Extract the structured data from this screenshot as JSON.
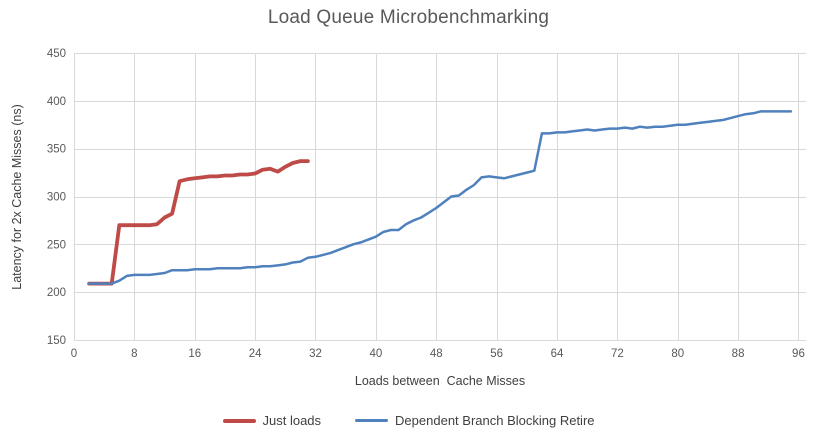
{
  "chart_data": {
    "type": "line",
    "title": "Load Queue Microbenchmarking",
    "xlabel": "Loads between  Cache Misses",
    "ylabel": "Latency for 2x Cache Misses (ns)",
    "xlim": [
      0,
      97
    ],
    "ylim": [
      150,
      450
    ],
    "x_ticks": [
      0,
      8,
      16,
      24,
      32,
      40,
      48,
      56,
      64,
      72,
      80,
      88,
      96
    ],
    "y_ticks": [
      150,
      200,
      250,
      300,
      350,
      400,
      450
    ],
    "grid": true,
    "legend_position": "bottom",
    "colors": {
      "title": "#595959",
      "tick_label": "#595959",
      "axis_title": "#404040",
      "gridline": "#d9d9d9",
      "axis_line": "#d9d9d9",
      "background": "#ffffff",
      "series_just_loads": "#be4b48",
      "series_dependent_branch": "#4f81bd"
    },
    "series": [
      {
        "name": "Just loads",
        "color": "#be4b48",
        "line_width": 3.8,
        "x_start": 2,
        "x_step": 1,
        "values": [
          209,
          209,
          209,
          209,
          270,
          270,
          270,
          270,
          270,
          271,
          278,
          282,
          316,
          318,
          319,
          320,
          321,
          321,
          322,
          322,
          323,
          323,
          324,
          328,
          329,
          326,
          331,
          335,
          337,
          337
        ]
      },
      {
        "name": "Dependent Branch Blocking Retire",
        "color": "#4f81bd",
        "line_width": 2.5,
        "x_start": 2,
        "x_step": 1,
        "values": [
          209,
          209,
          209,
          209,
          212,
          217,
          218,
          218,
          218,
          219,
          220,
          223,
          223,
          223,
          224,
          224,
          224,
          225,
          225,
          225,
          225,
          226,
          226,
          227,
          227,
          228,
          229,
          231,
          232,
          236,
          237,
          239,
          241,
          244,
          247,
          250,
          252,
          255,
          258,
          263,
          265,
          265,
          271,
          275,
          278,
          283,
          288,
          294,
          300,
          301,
          307,
          312,
          320,
          321,
          320,
          319,
          321,
          323,
          325,
          327,
          366,
          366,
          367,
          367,
          368,
          369,
          370,
          369,
          370,
          371,
          371,
          372,
          371,
          373,
          372,
          373,
          373,
          374,
          375,
          375,
          376,
          377,
          378,
          379,
          380,
          382,
          384,
          386,
          387,
          389,
          389,
          389,
          389,
          389
        ]
      }
    ]
  }
}
